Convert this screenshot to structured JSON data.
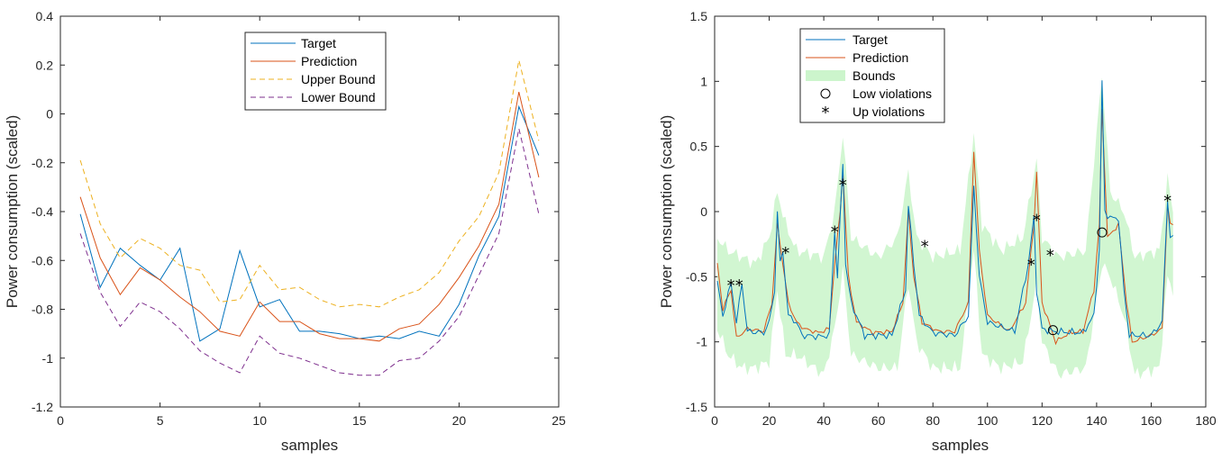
{
  "colors": {
    "target": "#0072BD",
    "prediction": "#D95319",
    "upper": "#EDB120",
    "lower": "#7E2F8E",
    "bounds": "#ccf5cc",
    "axis": "#262626"
  },
  "chart_data": [
    {
      "type": "line",
      "xlabel": "samples",
      "ylabel": "Power consumption (scaled)",
      "xlim": [
        0,
        25
      ],
      "ylim": [
        -1.2,
        0.4
      ],
      "xticks": [
        0,
        5,
        10,
        15,
        20,
        25
      ],
      "yticks": [
        -1.2,
        -1,
        -0.8,
        -0.6,
        -0.4,
        -0.2,
        0,
        0.2,
        0.4
      ],
      "ytick_labels": [
        "-1.2",
        "-1",
        "-0.8",
        "-0.6",
        "-0.4",
        "-0.2",
        "0",
        "0.2",
        "0.4"
      ],
      "legend": [
        "Target",
        "Prediction",
        "Upper Bound",
        "Lower Bound"
      ],
      "legend_location": "top-center",
      "x": [
        1,
        2,
        3,
        4,
        5,
        6,
        7,
        8,
        9,
        10,
        11,
        12,
        13,
        14,
        15,
        16,
        17,
        18,
        19,
        20,
        21,
        22,
        23,
        24
      ],
      "series": [
        {
          "name": "Target",
          "style": "solid",
          "values": [
            -0.41,
            -0.71,
            -0.55,
            -0.62,
            -0.68,
            -0.55,
            -0.93,
            -0.88,
            -0.56,
            -0.79,
            -0.76,
            -0.89,
            -0.89,
            -0.9,
            -0.92,
            -0.91,
            -0.92,
            -0.89,
            -0.91,
            -0.78,
            -0.58,
            -0.42,
            0.03,
            -0.17
          ]
        },
        {
          "name": "Prediction",
          "style": "solid",
          "values": [
            -0.34,
            -0.59,
            -0.74,
            -0.63,
            -0.68,
            -0.75,
            -0.81,
            -0.89,
            -0.91,
            -0.77,
            -0.85,
            -0.85,
            -0.9,
            -0.92,
            -0.92,
            -0.93,
            -0.88,
            -0.86,
            -0.78,
            -0.67,
            -0.54,
            -0.37,
            0.09,
            -0.26
          ]
        },
        {
          "name": "Upper Bound",
          "style": "dashed",
          "values": [
            -0.19,
            -0.45,
            -0.59,
            -0.51,
            -0.55,
            -0.62,
            -0.64,
            -0.77,
            -0.76,
            -0.62,
            -0.72,
            -0.71,
            -0.76,
            -0.79,
            -0.78,
            -0.79,
            -0.75,
            -0.72,
            -0.65,
            -0.52,
            -0.42,
            -0.24,
            0.22,
            -0.11
          ]
        },
        {
          "name": "Lower Bound",
          "style": "dashed",
          "values": [
            -0.49,
            -0.73,
            -0.87,
            -0.77,
            -0.81,
            -0.88,
            -0.97,
            -1.02,
            -1.06,
            -0.91,
            -0.98,
            -1.0,
            -1.03,
            -1.06,
            -1.07,
            -1.07,
            -1.01,
            -1.0,
            -0.93,
            -0.83,
            -0.66,
            -0.49,
            -0.06,
            -0.41
          ]
        }
      ]
    },
    {
      "type": "line",
      "xlabel": "samples",
      "ylabel": "Power consumption (scaled)",
      "xlim": [
        0,
        180
      ],
      "ylim": [
        -1.5,
        1.5
      ],
      "xticks": [
        0,
        20,
        40,
        60,
        80,
        100,
        120,
        140,
        160,
        180
      ],
      "yticks": [
        -1.5,
        -1,
        -0.5,
        0,
        0.5,
        1,
        1.5
      ],
      "ytick_labels": [
        "-1.5",
        "-1",
        "-0.5",
        "0",
        "0.5",
        "1",
        "1.5"
      ],
      "legend": [
        "Target",
        "Prediction",
        "Bounds",
        "Low violations",
        "Up violations"
      ],
      "legend_location": "top-left",
      "series_keypoints": {
        "Target": [
          [
            1,
            -0.55
          ],
          [
            3,
            -0.8
          ],
          [
            6,
            -0.55
          ],
          [
            8,
            -0.85
          ],
          [
            10,
            -0.55
          ],
          [
            12,
            -0.92
          ],
          [
            18,
            -0.93
          ],
          [
            20,
            -0.85
          ],
          [
            22,
            -0.6
          ],
          [
            23,
            0.0
          ],
          [
            24,
            -0.4
          ],
          [
            25,
            -0.3
          ],
          [
            27,
            -0.8
          ],
          [
            30,
            -0.85
          ],
          [
            32,
            -0.95
          ],
          [
            38,
            -0.96
          ],
          [
            42,
            -0.95
          ],
          [
            44,
            -0.15
          ],
          [
            45,
            -0.5
          ],
          [
            47,
            0.38
          ],
          [
            48,
            -0.4
          ],
          [
            50,
            -0.7
          ],
          [
            55,
            -0.95
          ],
          [
            65,
            -0.95
          ],
          [
            70,
            -0.6
          ],
          [
            71,
            0.05
          ],
          [
            73,
            -0.4
          ],
          [
            75,
            -0.8
          ],
          [
            80,
            -0.93
          ],
          [
            88,
            -0.95
          ],
          [
            93,
            -0.8
          ],
          [
            95,
            0.2
          ],
          [
            97,
            -0.5
          ],
          [
            100,
            -0.85
          ],
          [
            110,
            -0.92
          ],
          [
            115,
            -0.4
          ],
          [
            117,
            -0.05
          ],
          [
            118,
            -0.6
          ],
          [
            120,
            -0.9
          ],
          [
            124,
            -0.92
          ],
          [
            135,
            -0.93
          ],
          [
            139,
            -0.8
          ],
          [
            141,
            -0.3
          ],
          [
            142,
            1.0
          ],
          [
            143,
            0.0
          ],
          [
            145,
            -0.05
          ],
          [
            148,
            -0.05
          ],
          [
            150,
            -0.6
          ],
          [
            152,
            -0.95
          ],
          [
            160,
            -0.95
          ],
          [
            164,
            -0.85
          ],
          [
            166,
            0.1
          ],
          [
            167,
            -0.2
          ]
        ],
        "Prediction": [
          [
            1,
            -0.4
          ],
          [
            3,
            -0.75
          ],
          [
            6,
            -0.6
          ],
          [
            8,
            -0.97
          ],
          [
            12,
            -0.9
          ],
          [
            18,
            -0.92
          ],
          [
            21,
            -0.7
          ],
          [
            23,
            -0.1
          ],
          [
            25,
            -0.4
          ],
          [
            27,
            -0.7
          ],
          [
            30,
            -0.85
          ],
          [
            33,
            -0.9
          ],
          [
            38,
            -0.93
          ],
          [
            42,
            -0.9
          ],
          [
            44,
            -0.4
          ],
          [
            46,
            0.0
          ],
          [
            47,
            0.32
          ],
          [
            49,
            -0.5
          ],
          [
            52,
            -0.85
          ],
          [
            58,
            -0.93
          ],
          [
            65,
            -0.92
          ],
          [
            69,
            -0.7
          ],
          [
            71,
            0.0
          ],
          [
            73,
            -0.5
          ],
          [
            76,
            -0.85
          ],
          [
            82,
            -0.92
          ],
          [
            88,
            -0.92
          ],
          [
            93,
            -0.7
          ],
          [
            95,
            0.47
          ],
          [
            97,
            -0.3
          ],
          [
            100,
            -0.8
          ],
          [
            108,
            -0.92
          ],
          [
            114,
            -0.7
          ],
          [
            117,
            -0.1
          ],
          [
            118,
            0.3
          ],
          [
            120,
            -0.7
          ],
          [
            125,
            -1.0
          ],
          [
            130,
            -0.93
          ],
          [
            135,
            -0.92
          ],
          [
            139,
            -0.6
          ],
          [
            141,
            -0.1
          ],
          [
            142,
            0.78
          ],
          [
            144,
            -0.2
          ],
          [
            148,
            -0.1
          ],
          [
            151,
            -0.7
          ],
          [
            153,
            -1.0
          ],
          [
            160,
            -0.95
          ],
          [
            164,
            -0.9
          ],
          [
            166,
            0.05
          ],
          [
            167,
            -0.1
          ]
        ],
        "Bounds_band": [
          [
            1,
            -0.2,
            -0.9
          ],
          [
            5,
            -0.3,
            -1.1
          ],
          [
            10,
            -0.35,
            -1.2
          ],
          [
            15,
            -0.4,
            -1.2
          ],
          [
            20,
            -0.2,
            -1.15
          ],
          [
            23,
            0.15,
            -0.6
          ],
          [
            26,
            -0.1,
            -1.1
          ],
          [
            30,
            -0.3,
            -1.1
          ],
          [
            40,
            -0.35,
            -1.25
          ],
          [
            44,
            0.0,
            -0.9
          ],
          [
            47,
            0.6,
            -0.45
          ],
          [
            50,
            -0.2,
            -1.1
          ],
          [
            60,
            -0.35,
            -1.2
          ],
          [
            67,
            -0.2,
            -1.2
          ],
          [
            71,
            0.3,
            -0.55
          ],
          [
            74,
            -0.2,
            -1.0
          ],
          [
            80,
            -0.35,
            -1.2
          ],
          [
            90,
            -0.3,
            -1.2
          ],
          [
            95,
            0.6,
            -0.3
          ],
          [
            98,
            -0.1,
            -1.1
          ],
          [
            105,
            -0.3,
            -1.2
          ],
          [
            113,
            -0.2,
            -1.15
          ],
          [
            118,
            0.4,
            -0.55
          ],
          [
            120,
            -0.2,
            -1.0
          ],
          [
            126,
            -0.35,
            -1.25
          ],
          [
            136,
            -0.3,
            -1.2
          ],
          [
            142,
            1.05,
            -0.4
          ],
          [
            145,
            0.15,
            -0.5
          ],
          [
            150,
            0.0,
            -0.8
          ],
          [
            154,
            -0.35,
            -1.25
          ],
          [
            163,
            -0.3,
            -1.2
          ],
          [
            166,
            0.25,
            -0.5
          ],
          [
            168,
            0.0,
            -0.6
          ]
        ]
      },
      "low_violations": [
        [
          124,
          -0.91
        ],
        [
          142,
          -0.16
        ]
      ],
      "up_violations": [
        [
          6,
          -0.56
        ],
        [
          9,
          -0.56
        ],
        [
          26,
          -0.31
        ],
        [
          44,
          -0.15
        ],
        [
          47,
          0.21
        ],
        [
          77,
          -0.26
        ],
        [
          116,
          -0.4
        ],
        [
          118,
          -0.06
        ],
        [
          123,
          -0.33
        ],
        [
          166,
          0.09
        ]
      ]
    }
  ]
}
